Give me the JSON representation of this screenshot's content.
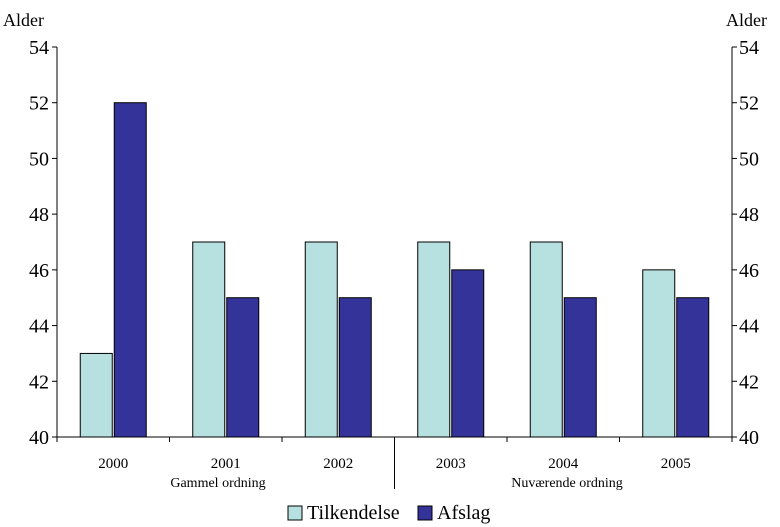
{
  "chart_data": {
    "type": "bar",
    "categories": [
      "2000",
      "2001",
      "2002",
      "2003",
      "2004",
      "2005"
    ],
    "series": [
      {
        "name": "Tilkendelse",
        "color": "#b7e0e0",
        "values": [
          43,
          47,
          47,
          47,
          47,
          46
        ]
      },
      {
        "name": "Afslag",
        "color": "#33339a",
        "values": [
          52,
          45,
          45,
          46,
          45,
          45
        ]
      }
    ],
    "ylabel_left": "Alder",
    "ylabel_right": "Alder",
    "ylim": [
      40,
      54
    ],
    "yticks": [
      "40",
      "42",
      "44",
      "46",
      "48",
      "50",
      "52",
      "54"
    ],
    "groups": [
      {
        "label": "Gammel ordning",
        "categories": [
          "2000",
          "2001",
          "2002"
        ]
      },
      {
        "label": "Nuværende ordning",
        "categories": [
          "2003",
          "2004",
          "2005"
        ]
      }
    ],
    "grid": false,
    "legend_position": "bottom"
  }
}
